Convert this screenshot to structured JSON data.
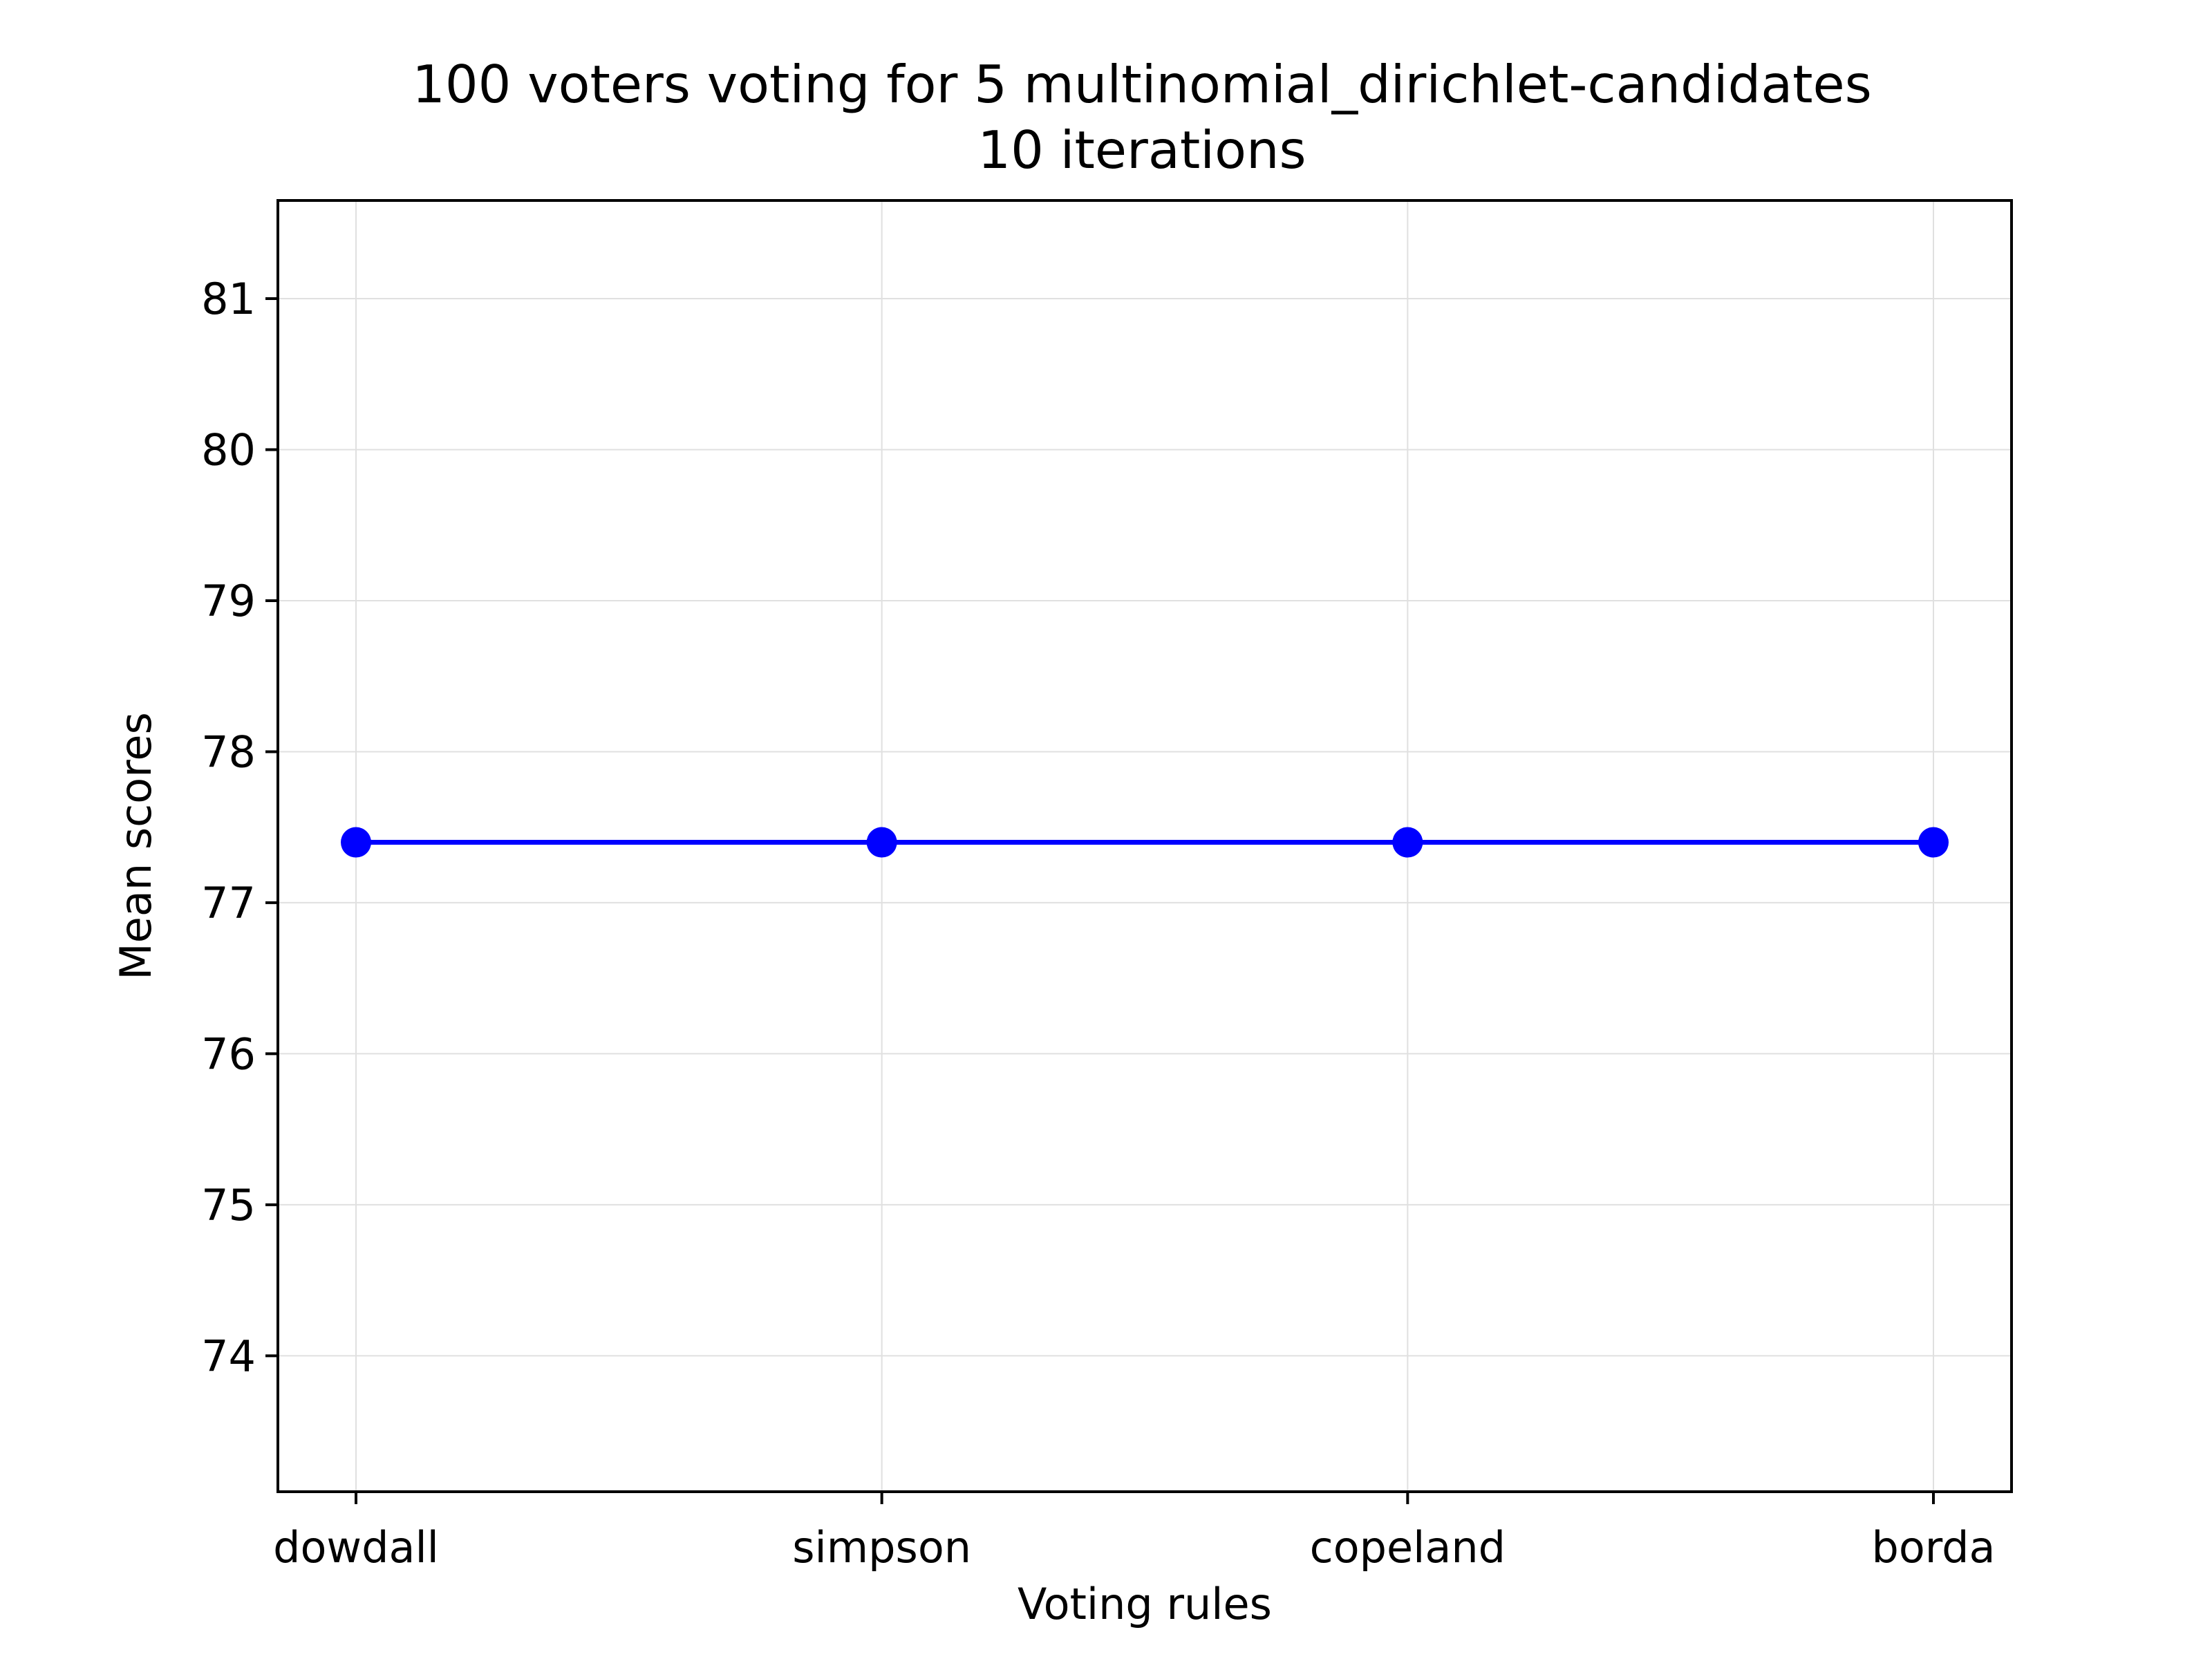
{
  "chart_data": {
    "type": "line",
    "title": "100 voters voting for 5 multinomial_dirichlet-candidates",
    "subtitle": "10 iterations",
    "xlabel": "Voting rules",
    "ylabel": "Mean scores",
    "categories": [
      "dowdall",
      "simpson",
      "copeland",
      "borda"
    ],
    "series": [
      {
        "name": "Mean scores",
        "color": "#0000ff",
        "marker": "circle",
        "values": [
          77.4,
          77.4,
          77.4,
          77.4
        ]
      }
    ],
    "ylim": [
      73.1,
      81.65
    ],
    "yticks": [
      74,
      75,
      76,
      77,
      78,
      79,
      80,
      81
    ],
    "ytick_labels": [
      "74",
      "75",
      "76",
      "77",
      "78",
      "79",
      "80",
      "81"
    ],
    "grid": true,
    "grid_color": "#e0e0e0",
    "axis_color": "#000000"
  }
}
